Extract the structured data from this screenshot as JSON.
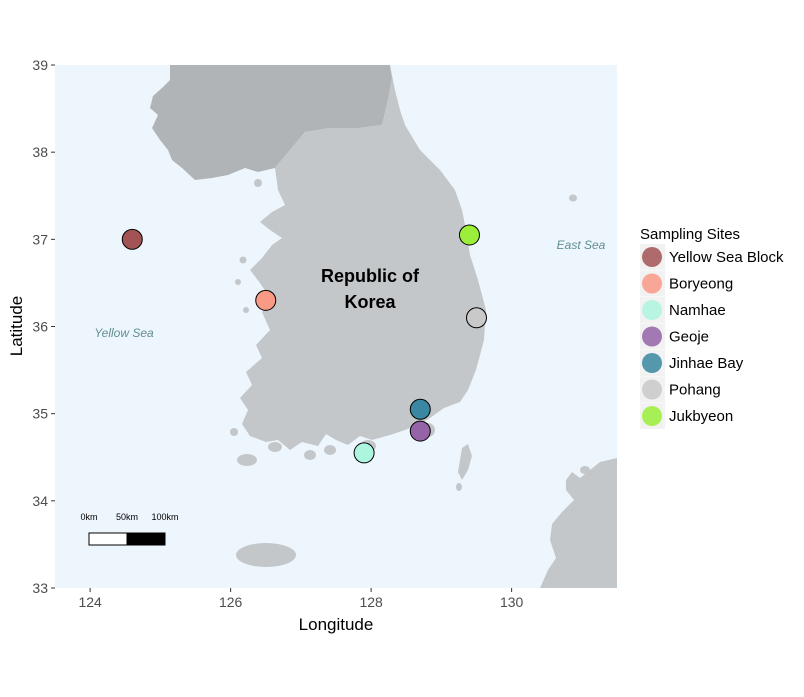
{
  "map": {
    "xlabel": "Longitude",
    "ylabel": "Latitude",
    "xlim": [
      123.5,
      131.5
    ],
    "ylim": [
      33,
      39
    ],
    "x_ticks": [
      124,
      126,
      128,
      130
    ],
    "y_ticks": [
      33,
      34,
      35,
      36,
      37,
      38,
      39
    ],
    "x_tick_labels": [
      "124",
      "126",
      "128",
      "130"
    ],
    "y_tick_labels": [
      "33",
      "34",
      "35",
      "36",
      "37",
      "38",
      "39"
    ],
    "country_label_line1": "Republic of",
    "country_label_line2": "Korea",
    "yellow_sea_label": "Yellow Sea",
    "east_sea_label": "East Sea",
    "scale_bar": {
      "labels": [
        "0km",
        "50km",
        "100km"
      ]
    },
    "colors": {
      "sea": "#eef6fd",
      "land": "#c4c7ca",
      "dark_land": "#b1b4b7"
    }
  },
  "legend": {
    "title": "Sampling Sites",
    "position": "right"
  },
  "chart_data": {
    "type": "scatter",
    "series": [
      {
        "name": "Yellow Sea Block",
        "lon": 124.6,
        "lat": 37.0,
        "color": "#a35353"
      },
      {
        "name": "Boryeong",
        "lon": 126.5,
        "lat": 36.3,
        "color": "#f99a86"
      },
      {
        "name": "Namhae",
        "lon": 127.9,
        "lat": 34.55,
        "color": "#aef5df"
      },
      {
        "name": "Geoje",
        "lon": 128.7,
        "lat": 34.8,
        "color": "#9564a8"
      },
      {
        "name": "Jinhae Bay",
        "lon": 128.7,
        "lat": 35.05,
        "color": "#3a87a1"
      },
      {
        "name": "Pohang",
        "lon": 129.5,
        "lat": 36.1,
        "color": "#c9c9c9"
      },
      {
        "name": "Jukbyeon",
        "lon": 129.4,
        "lat": 37.05,
        "color": "#9bef3a"
      }
    ]
  }
}
